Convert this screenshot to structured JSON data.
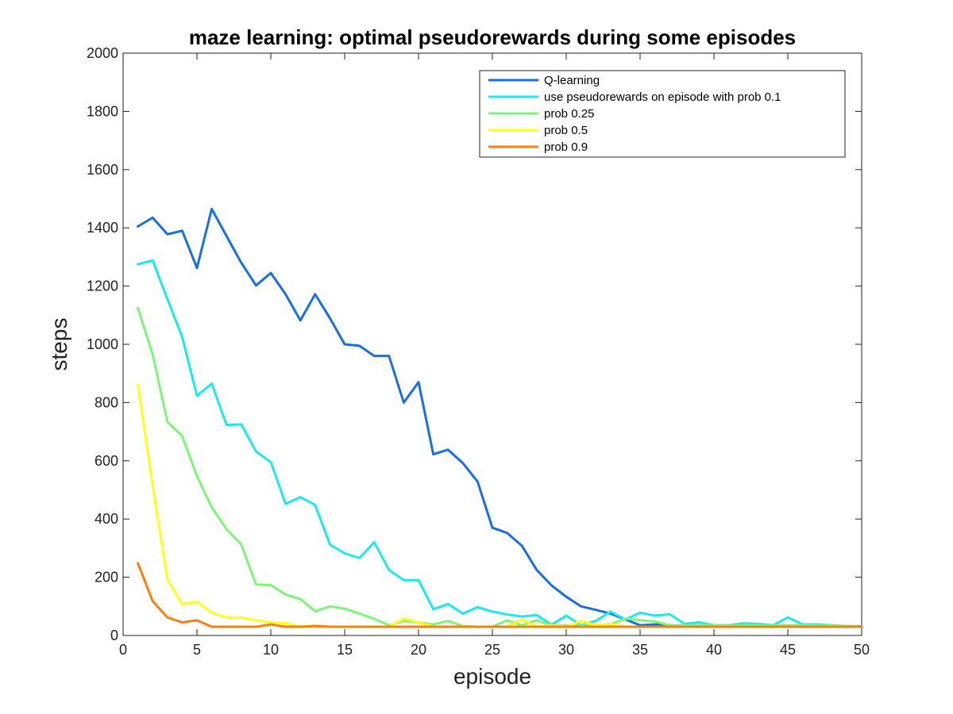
{
  "chart_data": {
    "type": "line",
    "title": "maze learning: optimal pseudorewards during some episodes",
    "xlabel": "episode",
    "ylabel": "steps",
    "xlim": [
      0,
      50
    ],
    "ylim": [
      0,
      2000
    ],
    "xticks": [
      0,
      5,
      10,
      15,
      20,
      25,
      30,
      35,
      40,
      45,
      50
    ],
    "yticks": [
      0,
      200,
      400,
      600,
      800,
      1000,
      1200,
      1400,
      1600,
      1800,
      2000
    ],
    "grid": false,
    "legend_position": "top-right",
    "x": [
      1,
      2,
      3,
      4,
      5,
      6,
      7,
      8,
      9,
      10,
      11,
      12,
      13,
      14,
      15,
      16,
      17,
      18,
      19,
      20,
      21,
      22,
      23,
      24,
      25,
      26,
      27,
      28,
      29,
      30,
      31,
      32,
      33,
      34,
      35,
      36,
      37,
      38,
      39,
      40,
      41,
      42,
      43,
      44,
      45,
      46,
      47,
      48,
      49,
      50
    ],
    "series": [
      {
        "name": "Q-learning",
        "color": "#1a6fe0",
        "values": [
          1405,
          1435,
          1378,
          1390,
          1262,
          1465,
          1372,
          1280,
          1202,
          1245,
          1172,
          1082,
          1172,
          1090,
          1000,
          995,
          960,
          960,
          800,
          870,
          622,
          638,
          592,
          528,
          370,
          352,
          308,
          225,
          172,
          133,
          100,
          88,
          75,
          55,
          35,
          38,
          35,
          32,
          30,
          30,
          30,
          30,
          30,
          30,
          30,
          30,
          30,
          30,
          30,
          30
        ]
      },
      {
        "name": "use pseudorewards on episode with prob 0.1",
        "color": "#1de8f0",
        "values": [
          1275,
          1288,
          1155,
          1025,
          823,
          865,
          723,
          725,
          632,
          595,
          452,
          475,
          448,
          312,
          282,
          266,
          320,
          225,
          190,
          190,
          90,
          108,
          75,
          97,
          82,
          72,
          65,
          70,
          37,
          68,
          35,
          50,
          82,
          55,
          78,
          68,
          73,
          40,
          45,
          35,
          35,
          42,
          40,
          35,
          62,
          38,
          38,
          35,
          32,
          32
        ]
      },
      {
        "name": "prob 0.25",
        "color": "#7df577",
        "values": [
          1125,
          965,
          733,
          685,
          547,
          440,
          365,
          312,
          175,
          173,
          140,
          125,
          83,
          100,
          92,
          75,
          57,
          35,
          50,
          45,
          38,
          50,
          32,
          30,
          30,
          52,
          35,
          52,
          35,
          35,
          35,
          35,
          38,
          58,
          52,
          48,
          35,
          35,
          35,
          35,
          35,
          35,
          35,
          35,
          35,
          35,
          35,
          35,
          32,
          30
        ]
      },
      {
        "name": "prob 0.5",
        "color": "#ffff1a",
        "values": [
          862,
          515,
          192,
          108,
          115,
          78,
          62,
          62,
          52,
          45,
          42,
          30,
          35,
          30,
          30,
          30,
          30,
          30,
          58,
          45,
          30,
          30,
          30,
          30,
          30,
          30,
          55,
          30,
          35,
          30,
          50,
          35,
          40,
          30,
          30,
          30,
          30,
          30,
          30,
          30,
          30,
          30,
          30,
          30,
          30,
          30,
          30,
          30,
          30,
          30
        ]
      },
      {
        "name": "prob 0.9",
        "color": "#ff7f0e",
        "values": [
          248,
          118,
          62,
          45,
          52,
          30,
          30,
          30,
          30,
          38,
          30,
          30,
          32,
          30,
          30,
          30,
          30,
          30,
          30,
          30,
          30,
          30,
          30,
          30,
          30,
          30,
          30,
          30,
          30,
          30,
          30,
          30,
          30,
          30,
          30,
          30,
          30,
          30,
          30,
          30,
          30,
          30,
          30,
          30,
          30,
          30,
          30,
          30,
          30,
          30
        ]
      }
    ]
  }
}
